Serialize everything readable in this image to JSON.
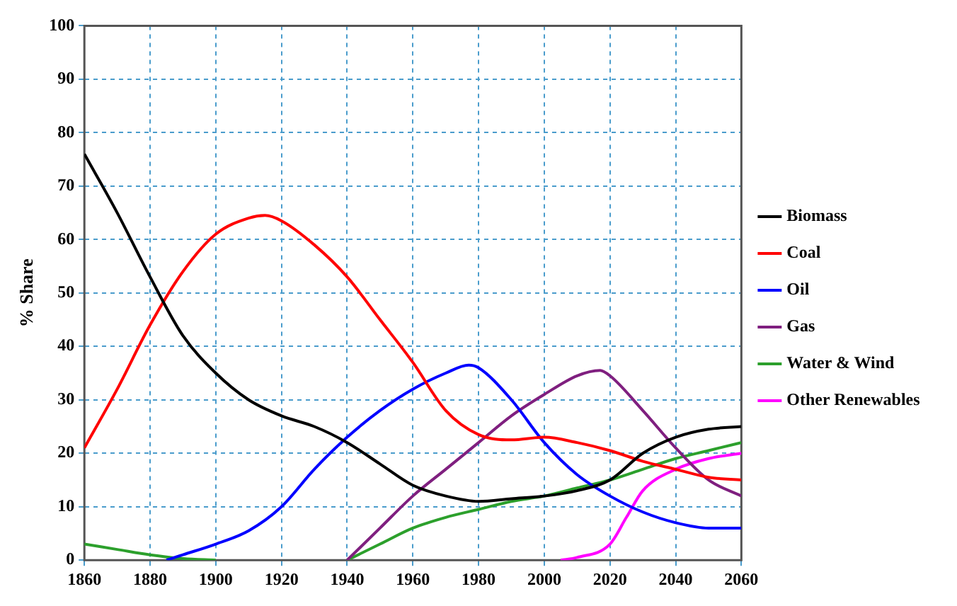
{
  "chart_data": {
    "type": "line",
    "ylabel": "% Share",
    "xlim": [
      1860,
      2060
    ],
    "xticks": [
      1860,
      1880,
      1900,
      1920,
      1940,
      1960,
      1980,
      2000,
      2020,
      2040,
      2060
    ],
    "ylim": [
      0,
      100
    ],
    "yticks": [
      0,
      10,
      20,
      30,
      40,
      50,
      60,
      70,
      80,
      90,
      100
    ],
    "grid": true,
    "legend": "right",
    "marker": "none",
    "line_style": "solid",
    "series": [
      {
        "name": "Biomass",
        "color": "#000000",
        "x": [
          1860,
          1870,
          1880,
          1890,
          1900,
          1910,
          1920,
          1930,
          1940,
          1950,
          1960,
          1970,
          1980,
          1990,
          2000,
          2010,
          2020,
          2030,
          2040,
          2050,
          2060
        ],
        "values": [
          76,
          65,
          53,
          42,
          35,
          30,
          27,
          25,
          22,
          18,
          14,
          12,
          11,
          11.5,
          12,
          13,
          15,
          20,
          23,
          24.5,
          25
        ]
      },
      {
        "name": "Coal",
        "color": "#ff0000",
        "x": [
          1860,
          1870,
          1880,
          1890,
          1900,
          1910,
          1915,
          1920,
          1930,
          1940,
          1950,
          1960,
          1970,
          1980,
          1990,
          2000,
          2010,
          2020,
          2030,
          2040,
          2050,
          2060
        ],
        "values": [
          21,
          32,
          44,
          54,
          61,
          64,
          64.5,
          63.5,
          59,
          53,
          45,
          37,
          28,
          23.5,
          22.5,
          23,
          22,
          20.5,
          18.5,
          17,
          15.5,
          15
        ]
      },
      {
        "name": "Oil",
        "color": "#0000ff",
        "x": [
          1885,
          1890,
          1900,
          1910,
          1920,
          1930,
          1940,
          1950,
          1960,
          1970,
          1977,
          1980,
          1990,
          2000,
          2010,
          2020,
          2030,
          2040,
          2050,
          2060
        ],
        "values": [
          0,
          1,
          3,
          5.5,
          10,
          17,
          23,
          28,
          32,
          35,
          36.5,
          36,
          30,
          22,
          16,
          12,
          9,
          7,
          6,
          6
        ]
      },
      {
        "name": "Gas",
        "color": "#7f1f7f",
        "x": [
          1940,
          1950,
          1960,
          1970,
          1980,
          1990,
          2000,
          2010,
          2017,
          2020,
          2030,
          2040,
          2050,
          2060
        ],
        "values": [
          0,
          6,
          12,
          17,
          22,
          27,
          31,
          34.5,
          35.5,
          34.5,
          28,
          21,
          15,
          12
        ]
      },
      {
        "name": "Water & Wind",
        "color": "#2ca02c",
        "x": [
          1860,
          1870,
          1880,
          1890,
          1900,
          1920,
          1940,
          1950,
          1960,
          1970,
          1980,
          1990,
          2000,
          2010,
          2020,
          2030,
          2040,
          2050,
          2060
        ],
        "values": [
          3,
          2,
          1,
          0.3,
          0,
          null,
          0,
          3,
          6,
          8,
          9.5,
          11,
          12,
          13.5,
          15,
          17,
          19,
          20.5,
          22
        ]
      },
      {
        "name": "Other Renewables",
        "color": "#ff00ff",
        "x": [
          2005,
          2010,
          2020,
          2025,
          2030,
          2040,
          2050,
          2060
        ],
        "values": [
          0,
          0.5,
          3,
          8,
          13,
          17,
          19,
          20
        ]
      }
    ]
  }
}
